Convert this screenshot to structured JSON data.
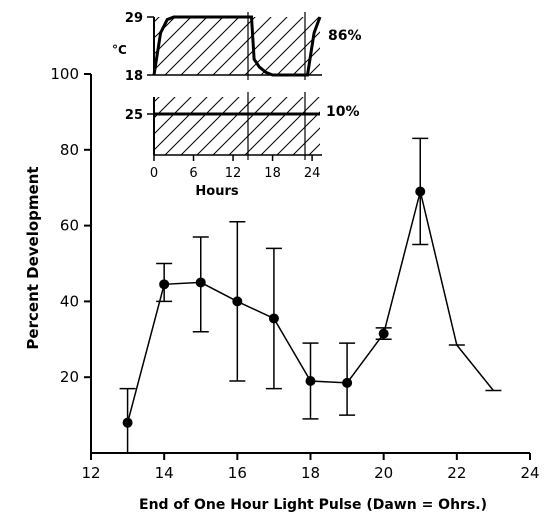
{
  "chart_data": [
    {
      "type": "line",
      "xlabel": "End of One Hour Light Pulse (Dawn = Ohrs.)",
      "ylabel": "Percent Development",
      "xlim": [
        12,
        24
      ],
      "ylim": [
        0,
        100
      ],
      "x_ticks": [
        "12",
        "14",
        "16",
        "18",
        "20",
        "22",
        "24"
      ],
      "y_ticks": [
        "20",
        "40",
        "60",
        "80",
        "100"
      ],
      "grid": false,
      "series": [
        {
          "points": [
            {
              "x": 13,
              "y": 8,
              "err_low": 0,
              "err_high": 17,
              "marker": true
            },
            {
              "x": 14,
              "y": 44.5,
              "err_low": 40,
              "err_high": 50,
              "marker": true
            },
            {
              "x": 15,
              "y": 45,
              "err_low": 32,
              "err_high": 57,
              "marker": true
            },
            {
              "x": 16,
              "y": 40,
              "err_low": 19,
              "err_high": 61,
              "marker": true
            },
            {
              "x": 17,
              "y": 35.5,
              "err_low": 17,
              "err_high": 54,
              "marker": true
            },
            {
              "x": 18,
              "y": 19,
              "err_low": 9,
              "err_high": 29,
              "marker": true
            },
            {
              "x": 19,
              "y": 18.5,
              "err_low": 10,
              "err_high": 29,
              "marker": true
            },
            {
              "x": 20,
              "y": 31.5,
              "err_low": 30,
              "err_high": 33,
              "marker": true
            },
            {
              "x": 21,
              "y": 69,
              "err_low": 55,
              "err_high": 83,
              "marker": true
            },
            {
              "x": 22,
              "y": 28.5,
              "err_low": 28.5,
              "err_high": 28.5,
              "marker": false
            },
            {
              "x": 23,
              "y": 16.5,
              "err_low": 16.5,
              "err_high": 16.5,
              "marker": false
            }
          ]
        }
      ]
    },
    {
      "type": "line",
      "xlabel": "Hours",
      "x_ticks": [
        "0",
        "6",
        "12",
        "18",
        "24"
      ],
      "temperature_ylabel": "°C",
      "temperature_ticks": [
        "29",
        "18"
      ],
      "temperature_label": "86%",
      "humidity_tick": "25",
      "humidity_label": "10%",
      "series": [
        {
          "x": [
            0,
            0.5,
            1,
            2,
            3,
            4,
            14.8,
            15.2,
            16,
            17,
            18,
            23.3,
            23.8,
            24.3,
            25.2
          ],
          "y": [
            18,
            22,
            26,
            28.5,
            29,
            29,
            29,
            21,
            19.5,
            18.5,
            18,
            18,
            22,
            26,
            29
          ]
        },
        {
          "x": [
            0,
            25.2
          ],
          "y": [
            25,
            25
          ]
        }
      ]
    }
  ]
}
